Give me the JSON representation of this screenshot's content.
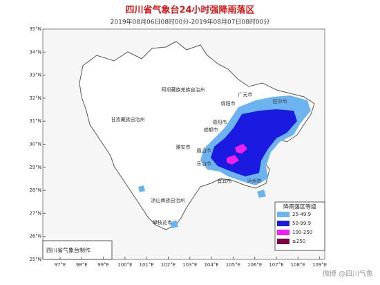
{
  "header": {
    "title": "四川省气象台24小时强降雨落区",
    "subtitle": "2019年08月06日08时00分-2019年08月07日08时00分"
  },
  "axes": {
    "lat_labels": [
      "35°N",
      "34°N",
      "33°N",
      "32°N",
      "31°N",
      "30°N",
      "29°N",
      "28°N",
      "27°N",
      "26°N",
      "25°N"
    ],
    "lon_labels": [
      "97°E",
      "98°E",
      "99°E",
      "100°E",
      "101°E",
      "102°E",
      "103°E",
      "104°E",
      "105°E",
      "106°E",
      "107°E",
      "108°E",
      "109°E"
    ]
  },
  "regions": [
    {
      "label": "广元市"
    },
    {
      "label": "巴中市"
    },
    {
      "label": "阿坝藏族羌族自治州"
    },
    {
      "label": "绵阳市"
    },
    {
      "label": "德阳市"
    },
    {
      "label": "甘孜藏族自治州"
    },
    {
      "label": "成都市"
    },
    {
      "label": "雅安市"
    },
    {
      "label": "眉山市"
    },
    {
      "label": "乐山市"
    },
    {
      "label": "宜宾市"
    },
    {
      "label": "泸州市"
    },
    {
      "label": "凉山彝族自治州"
    },
    {
      "label": "攀枝花市"
    }
  ],
  "legend": {
    "title": "降雨落区等级",
    "items": [
      {
        "label": "25-49.9",
        "color": "#6cb4f0"
      },
      {
        "label": "50-99.9",
        "color": "#1a1ae0"
      },
      {
        "label": "100-250",
        "color": "#f020f0"
      },
      {
        "label": "≥250",
        "color": "#800040"
      }
    ]
  },
  "credit": "四川省气象台制作",
  "watermark": "微博 @四川气象"
}
